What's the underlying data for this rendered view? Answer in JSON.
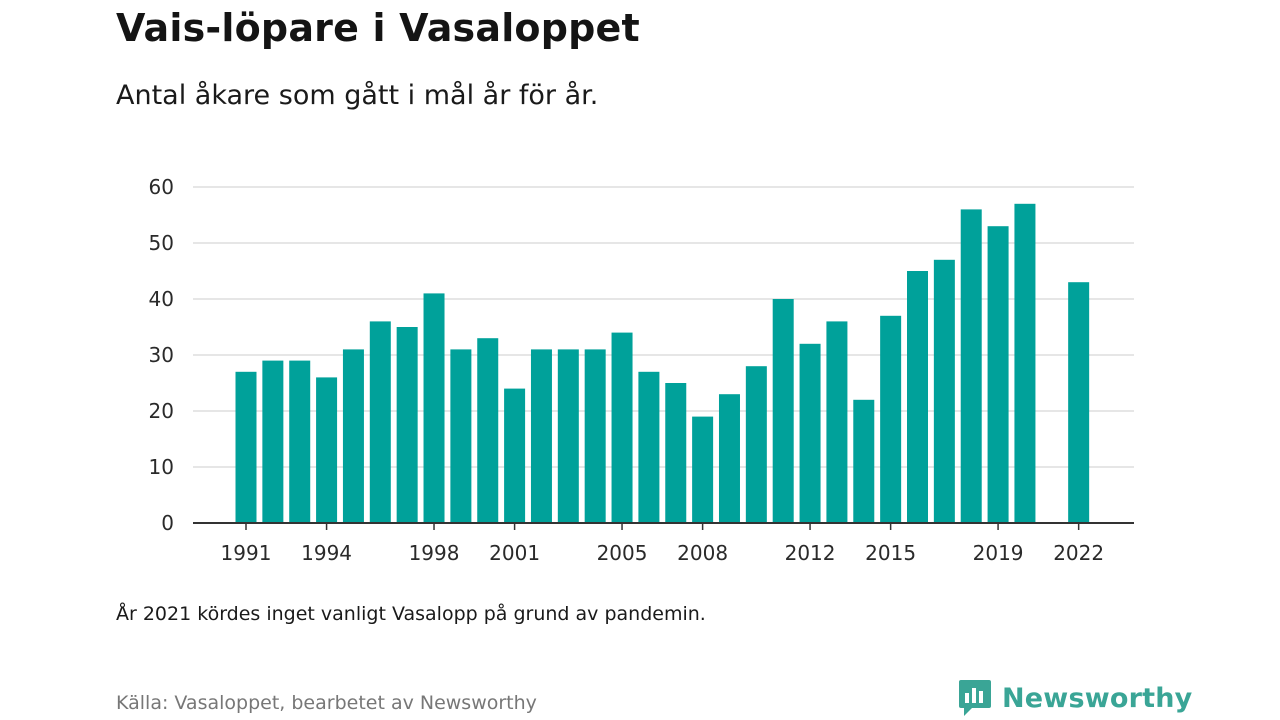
{
  "title": "Vais-löpare i Vasaloppet",
  "subtitle": "Antal åkare som gått i mål år för år.",
  "note": "År 2021 kördes inget vanligt Vasalopp på grund av pandemin.",
  "source": "Källa: Vasaloppet, bearbetet av Newsworthy",
  "brand": {
    "name": "Newsworthy",
    "color": "#3aa596",
    "icon": "newsworthy-chart-bubble-icon"
  },
  "chart_data": {
    "type": "bar",
    "x": [
      1991,
      1992,
      1993,
      1994,
      1995,
      1996,
      1997,
      1998,
      1999,
      2000,
      2001,
      2002,
      2003,
      2004,
      2005,
      2006,
      2007,
      2008,
      2009,
      2010,
      2011,
      2012,
      2013,
      2014,
      2015,
      2016,
      2017,
      2018,
      2019,
      2020,
      2021,
      2022
    ],
    "values": [
      27,
      29,
      29,
      26,
      31,
      36,
      35,
      41,
      31,
      33,
      24,
      31,
      31,
      31,
      34,
      27,
      25,
      19,
      23,
      28,
      40,
      32,
      36,
      22,
      37,
      45,
      47,
      56,
      53,
      57,
      null,
      43
    ],
    "x_tick_labels": [
      "1991",
      "1994",
      "1998",
      "2001",
      "2005",
      "2008",
      "2012",
      "2015",
      "2019",
      "2022"
    ],
    "y_ticks": [
      0,
      10,
      20,
      30,
      40,
      50,
      60
    ],
    "ylim": [
      0,
      60
    ],
    "grid": "horizontal",
    "bar_color": "#00a19a",
    "grid_color": "#dddddd",
    "axis_color": "#333333"
  }
}
